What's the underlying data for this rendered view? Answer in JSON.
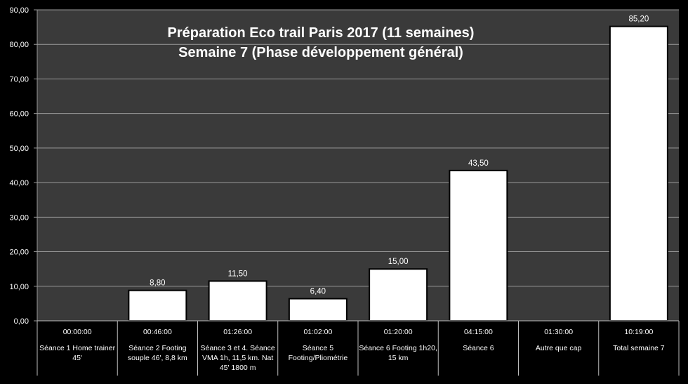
{
  "chart_data": {
    "type": "bar",
    "title": "Préparation Eco trail Paris 2017 (11 semaines)",
    "subtitle": "Semaine 7 (Phase développement général)",
    "xlabel": "",
    "ylabel": "",
    "ylim": [
      0,
      90
    ],
    "ytick_step": 10,
    "ytick_labels": [
      "0,00",
      "10,00",
      "20,00",
      "30,00",
      "40,00",
      "50,00",
      "60,00",
      "70,00",
      "80,00",
      "90,00"
    ],
    "grid": true,
    "legend": "none",
    "colors": {
      "background": "#000000",
      "plot_area": "#3a3a3a",
      "bar_fill": "#ffffff",
      "bar_border": "#000000",
      "grid": "#9a9a9a",
      "text": "#ffffff"
    },
    "categories": [
      {
        "time": "00:00:00",
        "label": [
          "Séance 1 Home trainer",
          "45'"
        ]
      },
      {
        "time": "00:46:00",
        "label": [
          "Séance 2 Footing",
          "souple 46', 8,8 km"
        ]
      },
      {
        "time": "01:26:00",
        "label": [
          "Séance 3 et 4. Séance",
          "VMA 1h, 11,5 km. Nat",
          "45' 1800 m"
        ]
      },
      {
        "time": "01:02:00",
        "label": [
          "Séance 5",
          "Footing/Pliométrie"
        ]
      },
      {
        "time": "01:20:00",
        "label": [
          "Séance 6 Footing 1h20,",
          "15 km"
        ]
      },
      {
        "time": "04:15:00",
        "label": [
          "Séance 6"
        ]
      },
      {
        "time": "01:30:00",
        "label": [
          "Autre que cap"
        ]
      },
      {
        "time": "10:19:00",
        "label": [
          "Total semaine 7"
        ]
      }
    ],
    "values": [
      null,
      8.8,
      11.5,
      6.4,
      15.0,
      43.5,
      null,
      85.2
    ],
    "data_labels": [
      "",
      "8,80",
      "11,50",
      "6,40",
      "15,00",
      "43,50",
      "",
      "85,20"
    ]
  }
}
